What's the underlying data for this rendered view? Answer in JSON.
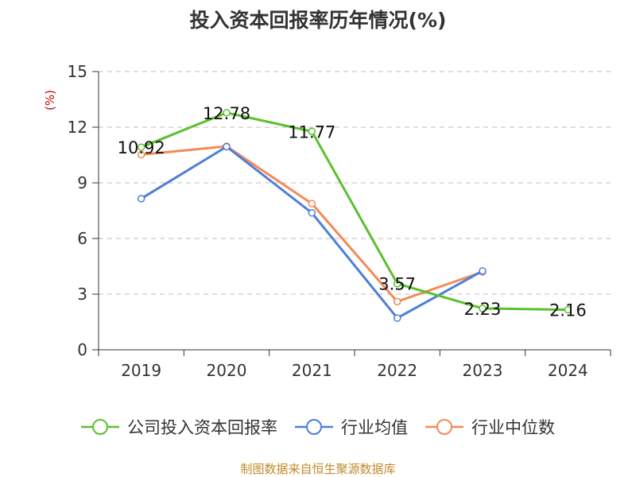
{
  "chart_data": {
    "type": "line",
    "title": "投入资本回报率历年情况(%)",
    "ylabel": "(%)",
    "xlabel": "",
    "categories": [
      "2019",
      "2020",
      "2021",
      "2022",
      "2023",
      "2024"
    ],
    "ylim": [
      0,
      15
    ],
    "yticks": [
      0,
      3,
      6,
      9,
      12,
      15
    ],
    "grid": true,
    "legend_position": "bottom",
    "series": [
      {
        "name": "公司投入资本回报率",
        "color": "#5ac12d",
        "values": [
          10.92,
          12.78,
          11.77,
          3.57,
          2.23,
          2.16
        ],
        "labels": [
          "10.92",
          "12.78",
          "11.77",
          "3.57",
          "2.23",
          "2.16"
        ]
      },
      {
        "name": "行业均值",
        "color": "#4e7fd9",
        "values": [
          8.15,
          10.95,
          7.38,
          1.71,
          4.25,
          null
        ]
      },
      {
        "name": "行业中位数",
        "color": "#f58a55",
        "values": [
          10.52,
          10.97,
          7.88,
          2.6,
          4.2,
          null
        ]
      }
    ]
  },
  "source": "制图数据来自恒生聚源数据库"
}
